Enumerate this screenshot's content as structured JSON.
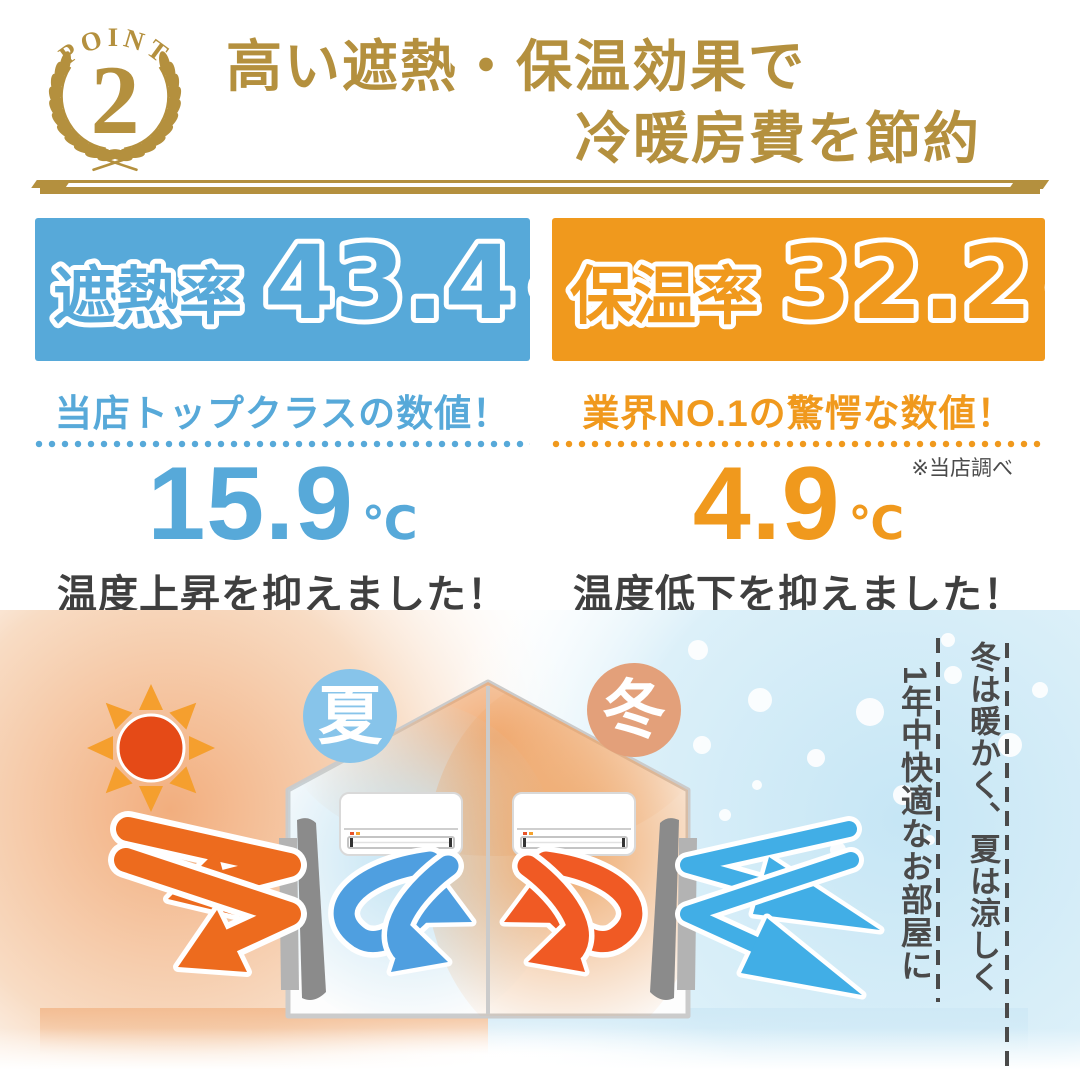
{
  "badge": {
    "label": "POINT",
    "number": "2"
  },
  "title": {
    "line1": "高い遮熱・保温効果で",
    "line2": "冷暖房費を節約"
  },
  "stats": {
    "shield": {
      "banner_label": "遮熱率",
      "banner_value": "43.4",
      "banner_unit": "%",
      "subtitle": "当店トップクラスの数値！",
      "temp_value": "15.9",
      "temp_unit": "℃",
      "caption": "温度上昇を抑えました！"
    },
    "retain": {
      "banner_label": "保温率",
      "banner_value": "32.2",
      "banner_unit": "%",
      "subtitle": "業界NO.1の驚愕な数値！",
      "note": "※当店調べ",
      "temp_value": "4.9",
      "temp_unit": "℃",
      "caption": "温度低下を抑えました！"
    }
  },
  "illustration": {
    "summer_label": "夏",
    "winter_label": "冬",
    "vertical_text_right": "冬は暖かく、夏は涼しく",
    "vertical_text_left": "1年中快適なお部屋に"
  },
  "colors": {
    "gold": "#b4903e",
    "blue": "#57a9d9",
    "orange": "#f0991d",
    "text_dark": "#3f3f3f",
    "text_gray": "#4a4a4a",
    "sun_core": "#e54a17",
    "sun_ray": "#f59f2e",
    "arrow_orange": "#ed6b1e",
    "arrow_red_orange": "#f05a24",
    "arrow_blue": "#41aee6",
    "curl_blue": "#4f9fe0",
    "summer_badge": "#87c4ea",
    "winter_badge": "#e3a07a",
    "curtain_dark": "#8b8b8b",
    "curtain_light": "#b3b3b3",
    "house_line": "#cbcbcb"
  }
}
